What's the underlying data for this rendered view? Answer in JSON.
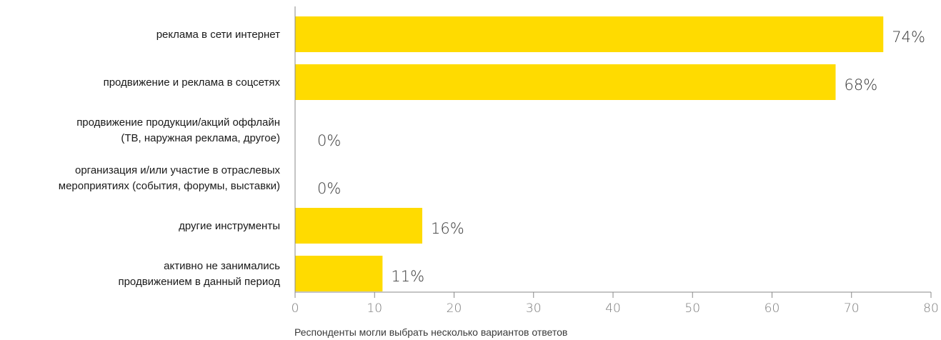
{
  "chart_data": {
    "type": "bar",
    "orientation": "horizontal",
    "categories": [
      [
        "реклама в сети интернет"
      ],
      [
        "продвижение и реклама в соцсетях"
      ],
      [
        "продвижение продукции/акций оффлайн",
        "(ТВ, наружная реклама, другое)"
      ],
      [
        "организация и/или участие в отраслевых",
        "мероприятиях (события, форумы, выставки)"
      ],
      [
        "другие инструменты"
      ],
      [
        "активно не занимались",
        "продвижением в данный период"
      ]
    ],
    "values": [
      74,
      68,
      0,
      0,
      16,
      11
    ],
    "value_labels": [
      "74%",
      "68%",
      "0%",
      "0%",
      "16%",
      "11%"
    ],
    "xlim": [
      0,
      80
    ],
    "xticks": [
      "0",
      "10",
      "20",
      "30",
      "40",
      "50",
      "60",
      "70",
      "80"
    ],
    "xtick_values": [
      0,
      10,
      20,
      30,
      40,
      50,
      60,
      70,
      80
    ],
    "bar_color": "#ffdb00",
    "grid": false,
    "note": "Респонденты могли выбрать несколько вариантов ответов"
  }
}
